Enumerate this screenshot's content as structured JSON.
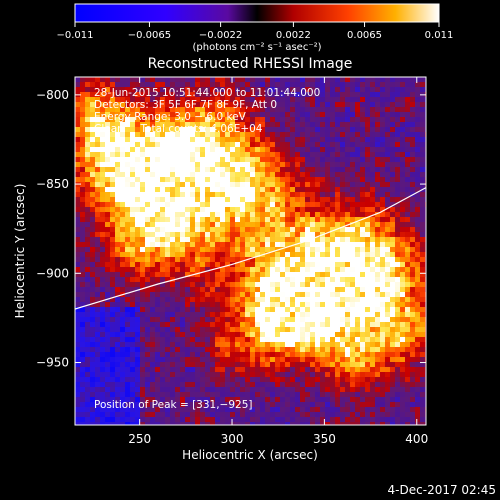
{
  "chart_data": {
    "type": "heatmap",
    "title": "Reconstructed RHESSI Image",
    "xlabel": "Heliocentric X (arcsec)",
    "ylabel": "Heliocentric Y (arcsec)",
    "xlim": [
      215,
      405
    ],
    "ylim": [
      -985,
      -790
    ],
    "x_ticks": [
      250,
      300,
      350,
      400
    ],
    "y_ticks": [
      -800,
      -850,
      -900,
      -950
    ],
    "x_tick_labels": [
      "250",
      "300",
      "350",
      "400"
    ],
    "y_tick_labels": [
      "−800",
      "−850",
      "−900",
      "−950"
    ],
    "colorbar": {
      "min": -0.011,
      "max": 0.011,
      "ticks": [
        -0.011,
        -0.0065,
        -0.0022,
        0.0022,
        0.0065,
        0.011
      ],
      "tick_labels": [
        "−0.011",
        "−0.0065",
        "−0.0022",
        "0.0022",
        "0.0065",
        "0.011"
      ],
      "unit_label": "(photons cm⁻² s⁻¹ asec⁻²)"
    },
    "annotations": [
      "28-Jun-2015 10:51:44.000 to 11:01:44.000",
      "Detectors: 3F 5F 6F 7F 8F 9F, Att 0",
      "Energy Range: 3.0 − 6.0 keV",
      "Clean     Total counts: 4.06E+04"
    ],
    "peak_label": "Position of Peak = [331,−925]",
    "peak": [
      331,
      -925
    ],
    "limb_arc": [
      [
        215,
        -920
      ],
      [
        260,
        -906
      ],
      [
        300,
        -895
      ],
      [
        340,
        -882
      ],
      [
        380,
        -866
      ],
      [
        405,
        -852
      ]
    ]
  },
  "timestamp": "4-Dec-2017 02:45",
  "colors": {
    "background": "#000000",
    "text": "#ffffff",
    "limb": "#ffffff"
  }
}
